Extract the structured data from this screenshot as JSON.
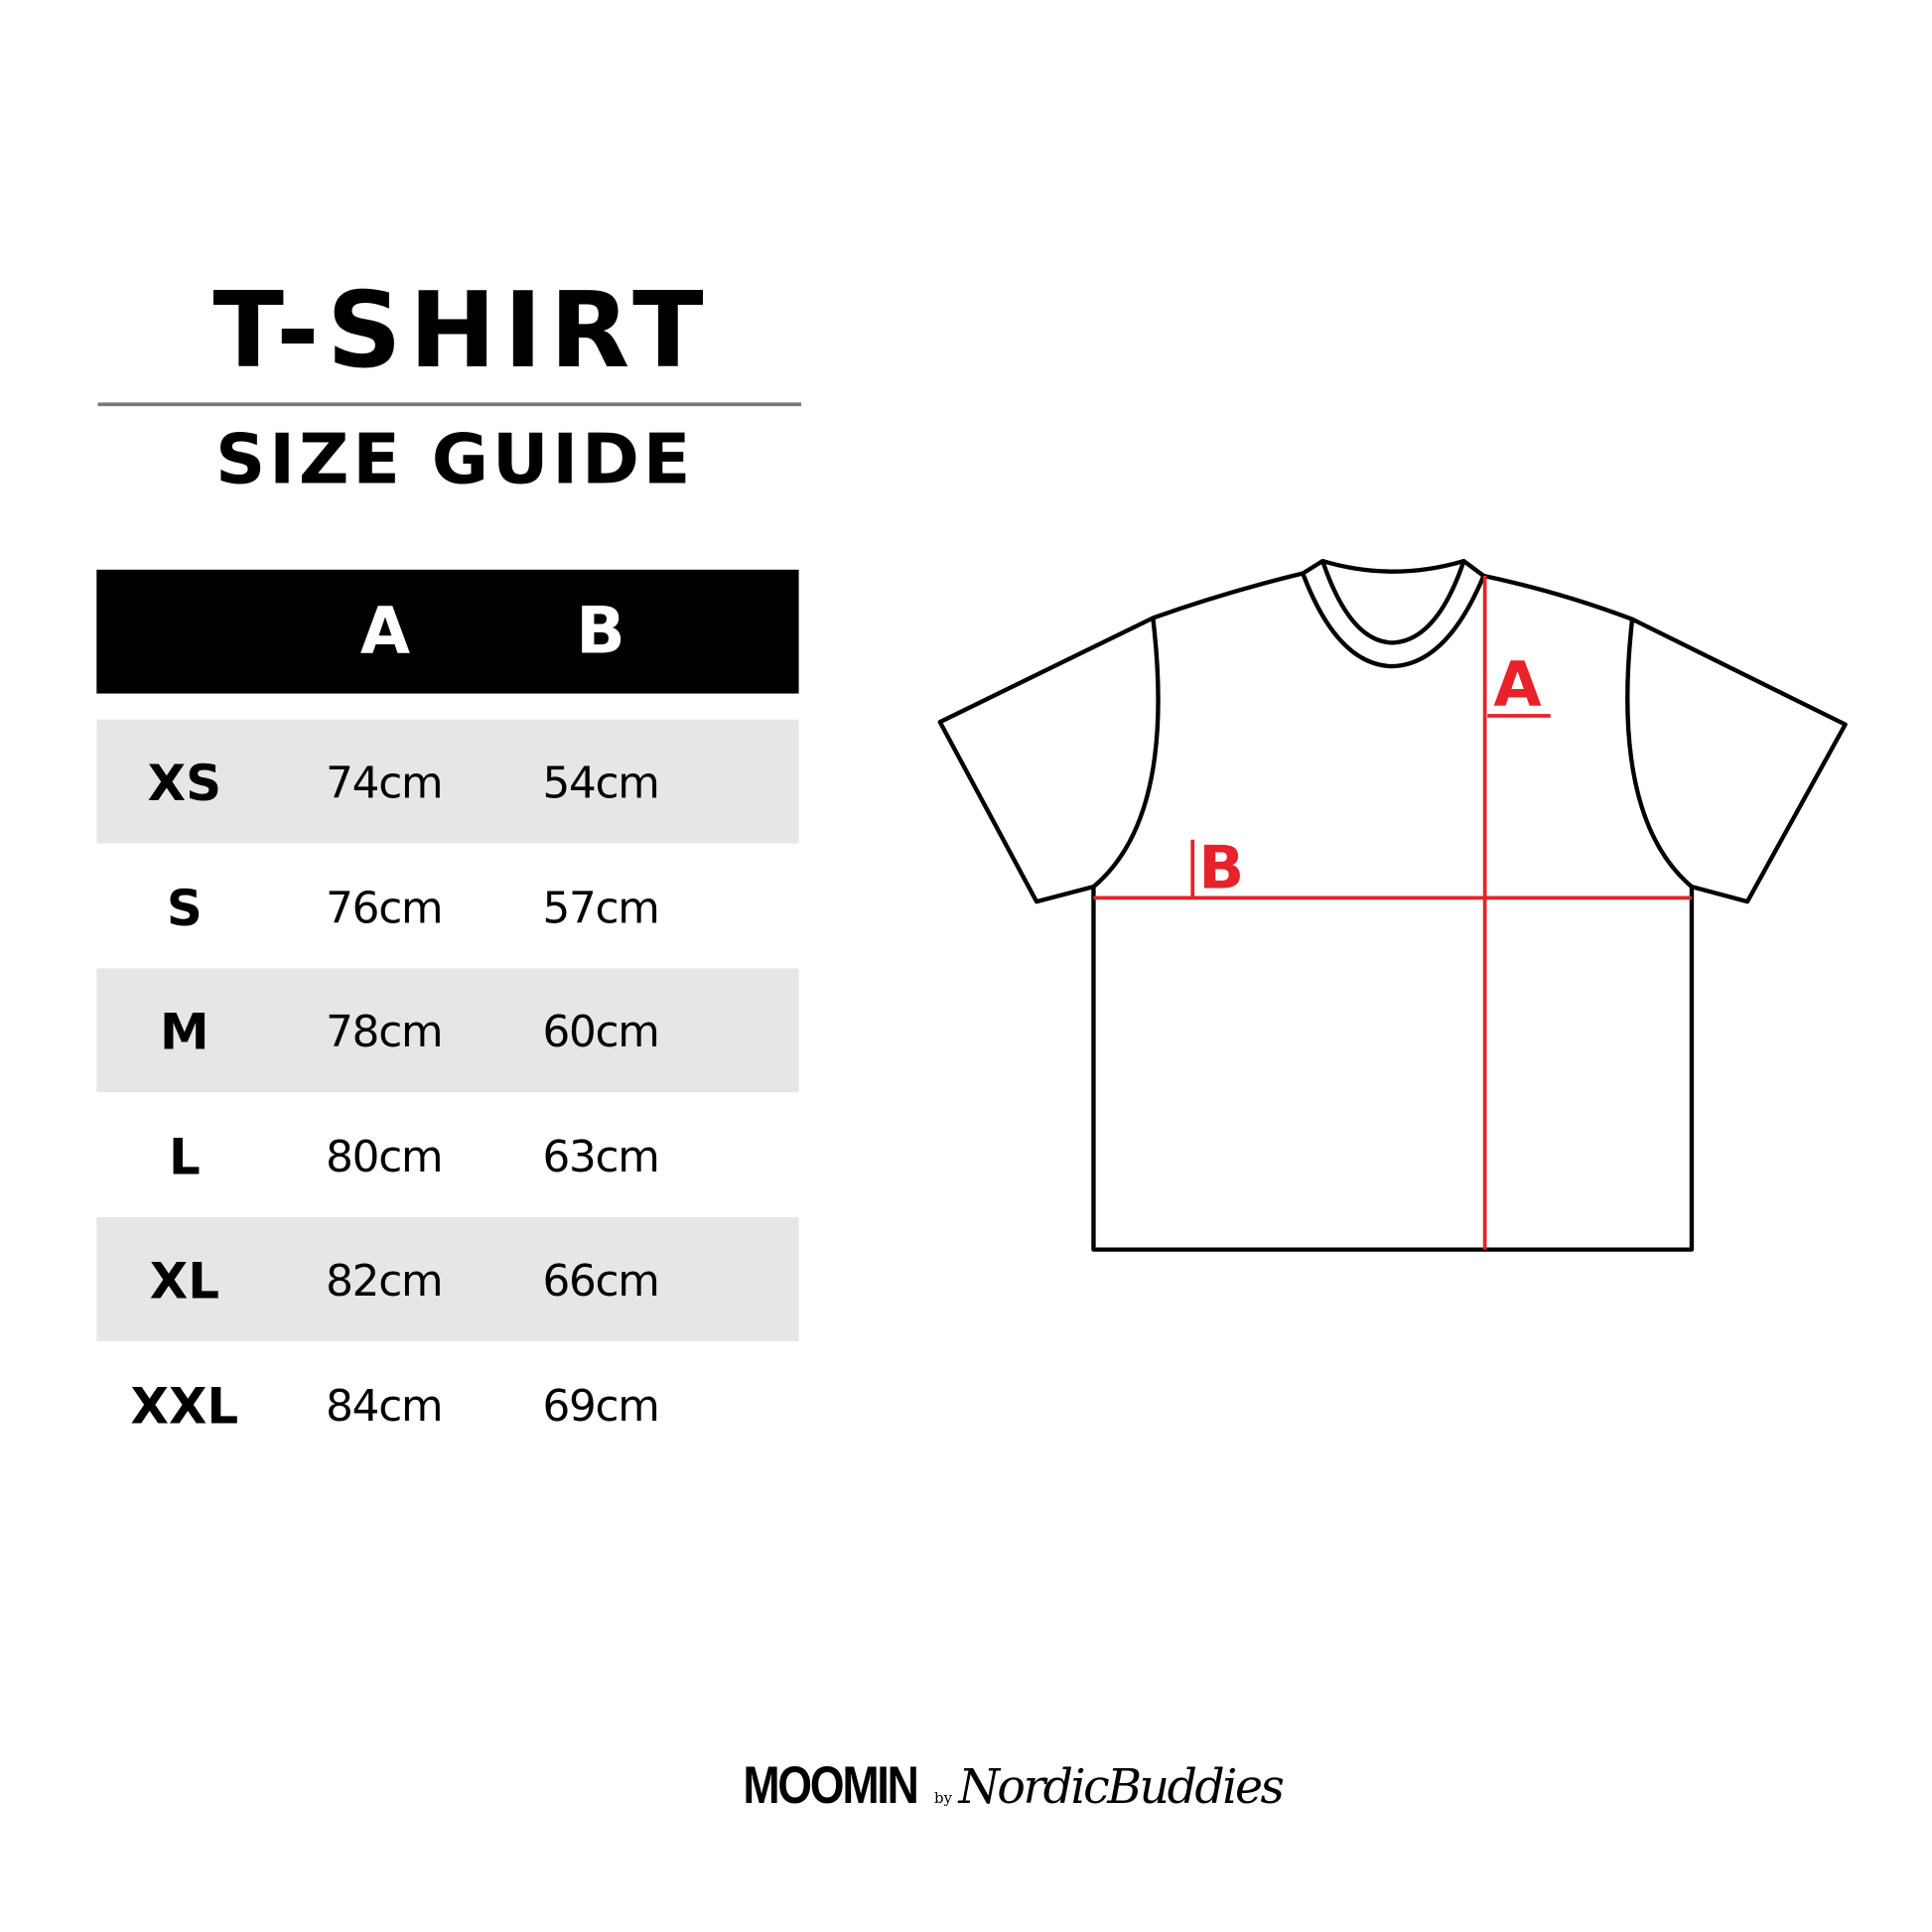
{
  "title": "T-SHIRT",
  "subtitle": "SIZE GUIDE",
  "table": {
    "headers": [
      "",
      "A",
      "B"
    ],
    "rows": [
      {
        "size": "XS",
        "a": "74cm",
        "b": "54cm"
      },
      {
        "size": "S",
        "a": "76cm",
        "b": "57cm"
      },
      {
        "size": "M",
        "a": "78cm",
        "b": "60cm"
      },
      {
        "size": "L",
        "a": "80cm",
        "b": "63cm"
      },
      {
        "size": "XL",
        "a": "82cm",
        "b": "66cm"
      },
      {
        "size": "XXL",
        "a": "84cm",
        "b": "69cm"
      }
    ]
  },
  "diagram": {
    "label_a": "A",
    "label_b": "B",
    "measure_color": "#e8222a"
  },
  "logo": {
    "brand": "MOOMIN",
    "by": "by",
    "partner": "NordicBuddies"
  },
  "colors": {
    "row_stripe": "#e6e6e6",
    "header_bg": "#000000"
  }
}
